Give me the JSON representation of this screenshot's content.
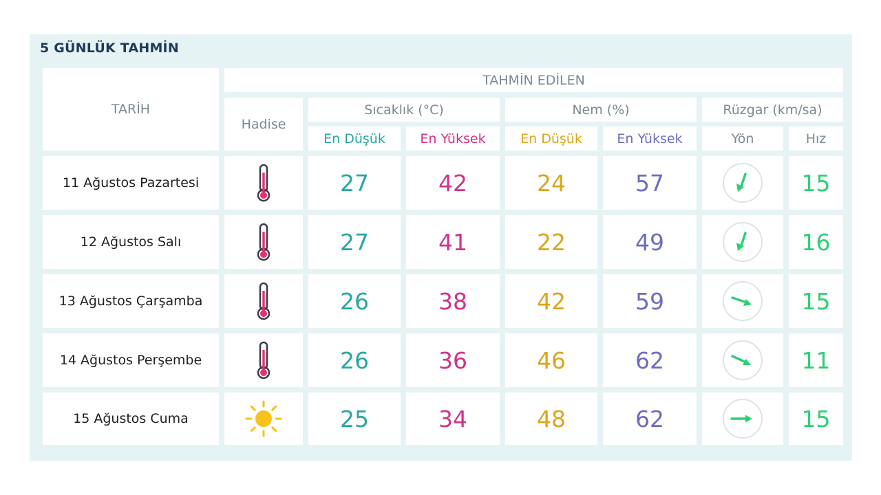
{
  "title": "5 GÜNLÜK TAHMİN",
  "headers": {
    "date": "TARİH",
    "forecast": "TAHMİN EDİLEN",
    "event": "Hadise",
    "temperature": "Sıcaklık (°C)",
    "humidity": "Nem (%)",
    "wind": "Rüzgar (km/sa)",
    "temp_min": "En Düşük",
    "temp_max": "En Yüksek",
    "hum_min": "En Düşük",
    "hum_max": "En Yüksek",
    "wind_dir": "Yön",
    "wind_speed": "Hız"
  },
  "colors": {
    "temp_min": "#2aa6a0",
    "temp_max": "#d0338a",
    "hum_min": "#d9a61c",
    "hum_max": "#6d6cc0",
    "wind": "#2fcf74",
    "header": "#7b8a92",
    "title": "#1e3a5c"
  },
  "rows": [
    {
      "date": "11 Ağustos Pazartesi",
      "icon": "thermometer-hot-icon",
      "temp_min": "27",
      "temp_max": "42",
      "hum_min": "24",
      "hum_max": "57",
      "wind_dir_icon": "arrow-down-left-icon",
      "wind_speed": "15"
    },
    {
      "date": "12 Ağustos Salı",
      "icon": "thermometer-hot-icon",
      "temp_min": "27",
      "temp_max": "41",
      "hum_min": "22",
      "hum_max": "49",
      "wind_dir_icon": "arrow-down-left-icon",
      "wind_speed": "16"
    },
    {
      "date": "13 Ağustos Çarşamba",
      "icon": "thermometer-hot-icon",
      "temp_min": "26",
      "temp_max": "38",
      "hum_min": "42",
      "hum_max": "59",
      "wind_dir_icon": "arrow-right-down-icon",
      "wind_speed": "15"
    },
    {
      "date": "14 Ağustos Perşembe",
      "icon": "thermometer-hot-icon",
      "temp_min": "26",
      "temp_max": "36",
      "hum_min": "46",
      "hum_max": "62",
      "wind_dir_icon": "arrow-right-down-icon",
      "wind_speed": "11"
    },
    {
      "date": "15 Ağustos Cuma",
      "icon": "sun-icon",
      "temp_min": "25",
      "temp_max": "34",
      "hum_min": "48",
      "hum_max": "62",
      "wind_dir_icon": "arrow-right-icon",
      "wind_speed": "15"
    }
  ]
}
